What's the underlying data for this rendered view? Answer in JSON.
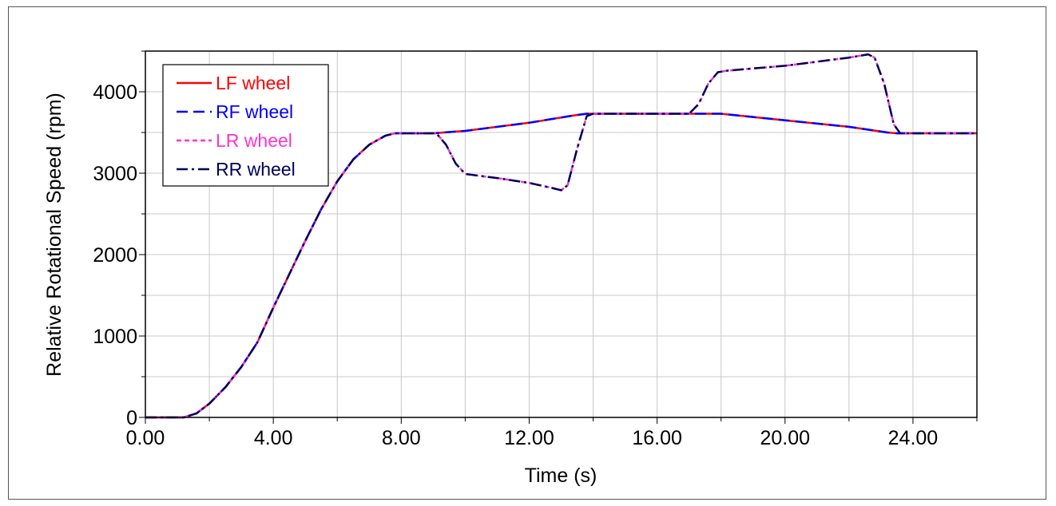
{
  "chart_data": {
    "type": "line",
    "xlabel": "Time (s)",
    "ylabel": "Relative Rotational Speed (rpm)",
    "xlim": [
      0,
      26
    ],
    "ylim": [
      0,
      4500
    ],
    "x_ticks": [
      "0.00",
      "4.00",
      "8.00",
      "12.00",
      "16.00",
      "20.00",
      "24.00"
    ],
    "x_tick_values": [
      0,
      4,
      8,
      12,
      16,
      20,
      24
    ],
    "y_ticks": [
      "0",
      "1000",
      "2000",
      "3000",
      "4000"
    ],
    "y_tick_values": [
      0,
      1000,
      2000,
      3000,
      4000
    ],
    "x_minor_step": 2,
    "y_minor_step": 500,
    "grid": true,
    "legend_position": "top-left",
    "series": [
      {
        "name_prefix": "LF",
        "name_suffix": " wheel",
        "color": "#ff0000",
        "dash": "solid",
        "points": [
          [
            0,
            0
          ],
          [
            1.2,
            0
          ],
          [
            1.6,
            50
          ],
          [
            2,
            170
          ],
          [
            2.5,
            370
          ],
          [
            3,
            620
          ],
          [
            3.5,
            920
          ],
          [
            4,
            1350
          ],
          [
            4.5,
            1760
          ],
          [
            5,
            2170
          ],
          [
            5.5,
            2560
          ],
          [
            6,
            2900
          ],
          [
            6.5,
            3170
          ],
          [
            7,
            3350
          ],
          [
            7.5,
            3460
          ],
          [
            7.8,
            3490
          ],
          [
            9,
            3490
          ],
          [
            10,
            3520
          ],
          [
            12,
            3620
          ],
          [
            13.4,
            3710
          ],
          [
            13.8,
            3730
          ],
          [
            17,
            3730
          ],
          [
            18,
            3730
          ],
          [
            20,
            3650
          ],
          [
            22,
            3570
          ],
          [
            23.2,
            3500
          ],
          [
            23.5,
            3490
          ],
          [
            26,
            3490
          ]
        ]
      },
      {
        "name_prefix": "RF",
        "name_suffix": " wheel",
        "color": "#0000ff",
        "dash": "dashed",
        "points": [
          [
            0,
            0
          ],
          [
            1.2,
            0
          ],
          [
            1.6,
            50
          ],
          [
            2,
            170
          ],
          [
            2.5,
            370
          ],
          [
            3,
            620
          ],
          [
            3.5,
            920
          ],
          [
            4,
            1350
          ],
          [
            4.5,
            1760
          ],
          [
            5,
            2170
          ],
          [
            5.5,
            2560
          ],
          [
            6,
            2900
          ],
          [
            6.5,
            3170
          ],
          [
            7,
            3350
          ],
          [
            7.5,
            3460
          ],
          [
            7.8,
            3490
          ],
          [
            9,
            3490
          ],
          [
            10,
            3520
          ],
          [
            12,
            3620
          ],
          [
            13.4,
            3710
          ],
          [
            13.8,
            3730
          ],
          [
            17,
            3730
          ],
          [
            18,
            3730
          ],
          [
            20,
            3650
          ],
          [
            22,
            3570
          ],
          [
            23.2,
            3500
          ],
          [
            23.5,
            3490
          ],
          [
            26,
            3490
          ]
        ]
      },
      {
        "name_prefix": "LR",
        "name_suffix": " wheel",
        "color": "#ff33cc",
        "dash": "short-dashed",
        "points": [
          [
            0,
            0
          ],
          [
            1.2,
            0
          ],
          [
            1.6,
            50
          ],
          [
            2,
            170
          ],
          [
            2.5,
            370
          ],
          [
            3,
            620
          ],
          [
            3.5,
            920
          ],
          [
            4,
            1350
          ],
          [
            4.5,
            1760
          ],
          [
            5,
            2170
          ],
          [
            5.5,
            2560
          ],
          [
            6,
            2900
          ],
          [
            6.5,
            3170
          ],
          [
            7,
            3350
          ],
          [
            7.5,
            3460
          ],
          [
            7.8,
            3490
          ],
          [
            9.1,
            3490
          ],
          [
            9.4,
            3350
          ],
          [
            9.7,
            3120
          ],
          [
            10,
            2990
          ],
          [
            11,
            2940
          ],
          [
            12,
            2880
          ],
          [
            12.7,
            2820
          ],
          [
            13,
            2790
          ],
          [
            13.2,
            2850
          ],
          [
            13.5,
            3300
          ],
          [
            13.8,
            3700
          ],
          [
            14,
            3730
          ],
          [
            17,
            3730
          ],
          [
            17.3,
            3850
          ],
          [
            17.6,
            4100
          ],
          [
            17.9,
            4240
          ],
          [
            18.2,
            4260
          ],
          [
            20,
            4320
          ],
          [
            22,
            4420
          ],
          [
            22.6,
            4460
          ],
          [
            22.8,
            4420
          ],
          [
            23.1,
            4100
          ],
          [
            23.4,
            3600
          ],
          [
            23.6,
            3490
          ],
          [
            26,
            3490
          ]
        ]
      },
      {
        "name_prefix": "RR",
        "name_suffix": " wheel",
        "color": "#00005a",
        "dash": "dash-dot",
        "points": [
          [
            0,
            0
          ],
          [
            1.2,
            0
          ],
          [
            1.6,
            50
          ],
          [
            2,
            170
          ],
          [
            2.5,
            370
          ],
          [
            3,
            620
          ],
          [
            3.5,
            920
          ],
          [
            4,
            1350
          ],
          [
            4.5,
            1760
          ],
          [
            5,
            2170
          ],
          [
            5.5,
            2560
          ],
          [
            6,
            2900
          ],
          [
            6.5,
            3170
          ],
          [
            7,
            3350
          ],
          [
            7.5,
            3460
          ],
          [
            7.8,
            3490
          ],
          [
            9.1,
            3490
          ],
          [
            9.4,
            3350
          ],
          [
            9.7,
            3120
          ],
          [
            10,
            2990
          ],
          [
            11,
            2940
          ],
          [
            12,
            2880
          ],
          [
            12.7,
            2820
          ],
          [
            13,
            2790
          ],
          [
            13.2,
            2850
          ],
          [
            13.5,
            3300
          ],
          [
            13.8,
            3700
          ],
          [
            14,
            3730
          ],
          [
            17,
            3730
          ],
          [
            17.3,
            3850
          ],
          [
            17.6,
            4100
          ],
          [
            17.9,
            4240
          ],
          [
            18.2,
            4260
          ],
          [
            20,
            4320
          ],
          [
            22,
            4420
          ],
          [
            22.6,
            4460
          ],
          [
            22.8,
            4420
          ],
          [
            23.1,
            4100
          ],
          [
            23.4,
            3600
          ],
          [
            23.6,
            3490
          ],
          [
            26,
            3490
          ]
        ]
      }
    ]
  }
}
